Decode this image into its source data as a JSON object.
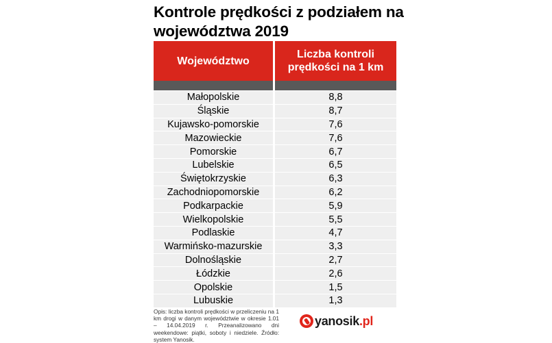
{
  "title": "Kontrole prędkości z podziałem na województwa 2019",
  "table": {
    "header": {
      "col1": "Województwo",
      "col2": "Liczba kontroli prędkości na 1 km"
    },
    "rows": [
      {
        "region": "Małopolskie",
        "value": "8,8"
      },
      {
        "region": "Śląskie",
        "value": "8,7"
      },
      {
        "region": "Kujawsko-pomorskie",
        "value": "7,6"
      },
      {
        "region": "Mazowieckie",
        "value": "7,6"
      },
      {
        "region": "Pomorskie",
        "value": "6,7"
      },
      {
        "region": "Lubelskie",
        "value": "6,5"
      },
      {
        "region": "Świętokrzyskie",
        "value": "6,3"
      },
      {
        "region": "Zachodniopomorskie",
        "value": "6,2"
      },
      {
        "region": "Podkarpackie",
        "value": "5,9"
      },
      {
        "region": "Wielkopolskie",
        "value": "5,5"
      },
      {
        "region": "Podlaskie",
        "value": "4,7"
      },
      {
        "region": "Warmińsko-mazurskie",
        "value": "3,3"
      },
      {
        "region": "Dolnośląskie",
        "value": "2,7"
      },
      {
        "region": "Łódzkie",
        "value": "2,6"
      },
      {
        "region": "Opolskie",
        "value": "1,5"
      },
      {
        "region": "Lubuskie",
        "value": "1,3"
      }
    ]
  },
  "note": "Opis: liczba kontroli prędkości w przeliczeniu na 1 km drogi w danym województwie w okresie 1.01 – 14.04.2019 r. Przeanalizowano dni weekendowe: piątki, soboty i niedziele. Źródło: system Yanosik.",
  "logo": {
    "name": "yanosik",
    "tld": ".pl",
    "icon": "yanosik-logo-icon",
    "color": "#e1251b"
  },
  "colors": {
    "header_bg": "#d9261c",
    "subheader_bg": "#595959",
    "row_bg": "#efefef"
  }
}
